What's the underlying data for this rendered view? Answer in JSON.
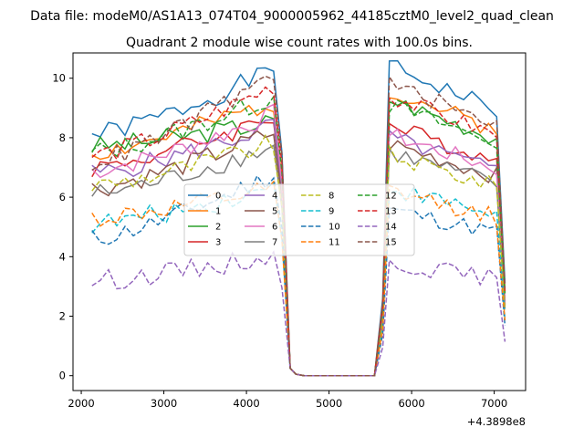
{
  "header_title": "Data file: modeM0/AS1A13_074T04_9000005962_44185cztM0_level2_quad_clean",
  "chart_data": {
    "type": "line",
    "title": "Quadrant 2 module wise count rates with 100.0s bins.",
    "xlabel": "",
    "ylabel": "",
    "offset_label": "+4.3898e8",
    "xlim": [
      1900,
      7380
    ],
    "ylim": [
      -0.5,
      10.85
    ],
    "xticks": [
      2000,
      3000,
      4000,
      5000,
      6000,
      7000
    ],
    "yticks": [
      0,
      2,
      4,
      6,
      8,
      10
    ],
    "legend_position": "center",
    "legend_cols": 4,
    "grid": false,
    "segment1_x": [
      2130,
      2230,
      2330,
      2430,
      2530,
      2630,
      2730,
      2830,
      2930,
      3030,
      3130,
      3230,
      3330,
      3430,
      3530,
      3630,
      3730,
      3830,
      3930,
      4030,
      4130,
      4230,
      4330,
      4430,
      4530,
      4630,
      4730,
      4830,
      4930,
      5030,
      5130,
      5230,
      5330,
      5430,
      5530,
      5630,
      5730,
      5830,
      5930,
      6030,
      6130,
      6230,
      6330,
      6430,
      6530,
      6630,
      6730,
      6830,
      6930,
      7030,
      7130
    ],
    "series": [
      {
        "name": "0",
        "color": "#1f77b4",
        "dash": "solid",
        "start": 8.1,
        "end": 10.4,
        "after": 10.4,
        "seed": 1
      },
      {
        "name": "1",
        "color": "#ff7f0e",
        "dash": "solid",
        "start": 7.5,
        "end": 9.3,
        "after": 9.6,
        "seed": 2
      },
      {
        "name": "2",
        "color": "#2ca02c",
        "dash": "solid",
        "start": 7.7,
        "end": 8.6,
        "after": 9.3,
        "seed": 3
      },
      {
        "name": "3",
        "color": "#d62728",
        "dash": "solid",
        "start": 7.0,
        "end": 8.8,
        "after": 8.4,
        "seed": 4
      },
      {
        "name": "4",
        "color": "#9467bd",
        "dash": "solid",
        "start": 6.8,
        "end": 8.5,
        "after": 8.0,
        "seed": 5
      },
      {
        "name": "5",
        "color": "#8c564b",
        "dash": "solid",
        "start": 6.3,
        "end": 8.3,
        "after": 7.8,
        "seed": 6
      },
      {
        "name": "6",
        "color": "#e377c2",
        "dash": "solid",
        "start": 6.9,
        "end": 8.9,
        "after": 8.1,
        "seed": 7
      },
      {
        "name": "7",
        "color": "#7f7f7f",
        "dash": "solid",
        "start": 6.1,
        "end": 7.8,
        "after": 7.5,
        "seed": 8
      },
      {
        "name": "8",
        "color": "#bcbd22",
        "dash": "dashed",
        "start": 6.4,
        "end": 7.9,
        "after": 7.4,
        "seed": 9
      },
      {
        "name": "9",
        "color": "#17becf",
        "dash": "dashed",
        "start": 5.1,
        "end": 6.4,
        "after": 6.3,
        "seed": 10
      },
      {
        "name": "10",
        "color": "#1f77b4",
        "dash": "dashed",
        "start": 4.6,
        "end": 6.9,
        "after": 5.6,
        "seed": 11
      },
      {
        "name": "11",
        "color": "#ff7f0e",
        "dash": "dashed",
        "start": 5.3,
        "end": 6.3,
        "after": 6.2,
        "seed": 12
      },
      {
        "name": "12",
        "color": "#2ca02c",
        "dash": "dashed",
        "start": 7.5,
        "end": 9.5,
        "after": 9.1,
        "seed": 13
      },
      {
        "name": "13",
        "color": "#d62728",
        "dash": "dashed",
        "start": 7.4,
        "end": 9.9,
        "after": 9.4,
        "seed": 14
      },
      {
        "name": "14",
        "color": "#9467bd",
        "dash": "dashed",
        "start": 3.2,
        "end": 4.1,
        "after": 3.8,
        "seed": 15
      },
      {
        "name": "15",
        "color": "#8c564b",
        "dash": "dashed",
        "start": 7.2,
        "end": 10.3,
        "after": 9.8,
        "seed": 16
      }
    ]
  }
}
